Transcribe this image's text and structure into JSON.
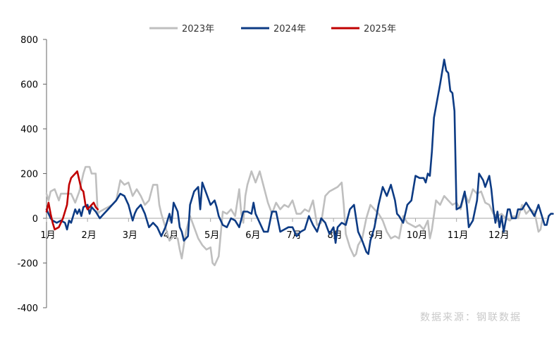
{
  "chart_data": {
    "type": "line",
    "title": "",
    "xlabel": "",
    "ylabel": "",
    "ylim": [
      -400,
      800
    ],
    "yticks": [
      -400,
      -200,
      0,
      200,
      400,
      600,
      800
    ],
    "x_range": [
      1,
      13
    ],
    "month_labels": [
      "1月",
      "2月",
      "3月",
      "4月",
      "5月",
      "6月",
      "7月",
      "8月",
      "9月",
      "10月",
      "11月",
      "12月"
    ],
    "legend_position": "top-center",
    "grid": false,
    "series": [
      {
        "name": "2023年",
        "color": "#bfbfbf",
        "points": [
          [
            1.0,
            110
          ],
          [
            1.05,
            80
          ],
          [
            1.1,
            120
          ],
          [
            1.2,
            130
          ],
          [
            1.3,
            80
          ],
          [
            1.35,
            110
          ],
          [
            1.45,
            110
          ],
          [
            1.5,
            110
          ],
          [
            1.6,
            110
          ],
          [
            1.7,
            70
          ],
          [
            1.8,
            120
          ],
          [
            1.9,
            200
          ],
          [
            1.95,
            230
          ],
          [
            2.05,
            230
          ],
          [
            2.1,
            200
          ],
          [
            2.2,
            200
          ],
          [
            2.25,
            20
          ],
          [
            2.3,
            30
          ],
          [
            2.4,
            40
          ],
          [
            2.5,
            50
          ],
          [
            2.6,
            60
          ],
          [
            2.7,
            80
          ],
          [
            2.8,
            170
          ],
          [
            2.9,
            150
          ],
          [
            3.0,
            160
          ],
          [
            3.1,
            100
          ],
          [
            3.2,
            130
          ],
          [
            3.3,
            100
          ],
          [
            3.4,
            60
          ],
          [
            3.5,
            80
          ],
          [
            3.6,
            150
          ],
          [
            3.7,
            150
          ],
          [
            3.75,
            60
          ],
          [
            3.8,
            20
          ],
          [
            3.9,
            -40
          ],
          [
            4.0,
            -100
          ],
          [
            4.1,
            -80
          ],
          [
            4.2,
            -90
          ],
          [
            4.25,
            -140
          ],
          [
            4.3,
            -180
          ],
          [
            4.4,
            -60
          ],
          [
            4.5,
            10
          ],
          [
            4.6,
            -40
          ],
          [
            4.7,
            -90
          ],
          [
            4.8,
            -120
          ],
          [
            4.9,
            -140
          ],
          [
            5.0,
            -130
          ],
          [
            5.05,
            -200
          ],
          [
            5.1,
            -210
          ],
          [
            5.2,
            -170
          ],
          [
            5.3,
            30
          ],
          [
            5.4,
            20
          ],
          [
            5.5,
            40
          ],
          [
            5.6,
            10
          ],
          [
            5.7,
            130
          ],
          [
            5.75,
            20
          ],
          [
            5.8,
            -20
          ],
          [
            5.85,
            100
          ],
          [
            5.9,
            150
          ],
          [
            6.0,
            210
          ],
          [
            6.1,
            160
          ],
          [
            6.2,
            210
          ],
          [
            6.3,
            140
          ],
          [
            6.4,
            70
          ],
          [
            6.5,
            20
          ],
          [
            6.6,
            70
          ],
          [
            6.7,
            40
          ],
          [
            6.8,
            60
          ],
          [
            6.9,
            50
          ],
          [
            7.0,
            80
          ],
          [
            7.1,
            20
          ],
          [
            7.2,
            20
          ],
          [
            7.3,
            40
          ],
          [
            7.4,
            30
          ],
          [
            7.5,
            80
          ],
          [
            7.6,
            -30
          ],
          [
            7.7,
            -20
          ],
          [
            7.8,
            100
          ],
          [
            7.9,
            120
          ],
          [
            8.0,
            130
          ],
          [
            8.1,
            140
          ],
          [
            8.2,
            160
          ],
          [
            8.25,
            60
          ],
          [
            8.3,
            -70
          ],
          [
            8.4,
            -130
          ],
          [
            8.5,
            -170
          ],
          [
            8.55,
            -160
          ],
          [
            8.6,
            -120
          ],
          [
            8.7,
            -90
          ],
          [
            8.8,
            0
          ],
          [
            8.9,
            60
          ],
          [
            9.0,
            40
          ],
          [
            9.1,
            20
          ],
          [
            9.2,
            -10
          ],
          [
            9.3,
            -60
          ],
          [
            9.4,
            -90
          ],
          [
            9.5,
            -80
          ],
          [
            9.6,
            -90
          ],
          [
            9.7,
            10
          ],
          [
            9.8,
            -20
          ],
          [
            9.9,
            -30
          ],
          [
            10.0,
            -40
          ],
          [
            10.1,
            -30
          ],
          [
            10.2,
            -50
          ],
          [
            10.3,
            -10
          ],
          [
            10.35,
            -90
          ],
          [
            10.4,
            -50
          ],
          [
            10.5,
            80
          ],
          [
            10.6,
            60
          ],
          [
            10.7,
            100
          ],
          [
            10.8,
            80
          ],
          [
            10.9,
            60
          ],
          [
            11.0,
            70
          ],
          [
            11.1,
            40
          ],
          [
            11.2,
            110
          ],
          [
            11.3,
            70
          ],
          [
            11.4,
            130
          ],
          [
            11.5,
            110
          ],
          [
            11.6,
            120
          ],
          [
            11.7,
            70
          ],
          [
            11.8,
            60
          ],
          [
            11.9,
            20
          ],
          [
            12.0,
            10
          ],
          [
            12.1,
            20
          ],
          [
            12.2,
            0
          ],
          [
            12.3,
            -10
          ],
          [
            12.4,
            10
          ],
          [
            12.5,
            0
          ],
          [
            12.6,
            60
          ],
          [
            12.7,
            20
          ],
          [
            12.8,
            40
          ],
          [
            12.9,
            30
          ],
          [
            13.0,
            -60
          ],
          [
            13.05,
            -50
          ],
          [
            13.1,
            0
          ]
        ]
      },
      {
        "name": "2024年",
        "color": "#0d3b84",
        "points": [
          [
            1.0,
            40
          ],
          [
            1.05,
            20
          ],
          [
            1.1,
            0
          ],
          [
            1.15,
            -10
          ],
          [
            1.25,
            -20
          ],
          [
            1.35,
            -10
          ],
          [
            1.45,
            -20
          ],
          [
            1.5,
            -50
          ],
          [
            1.55,
            -10
          ],
          [
            1.6,
            -20
          ],
          [
            1.7,
            40
          ],
          [
            1.75,
            20
          ],
          [
            1.8,
            40
          ],
          [
            1.85,
            10
          ],
          [
            1.9,
            50
          ],
          [
            2.0,
            60
          ],
          [
            2.05,
            20
          ],
          [
            2.1,
            50
          ],
          [
            2.2,
            30
          ],
          [
            2.3,
            0
          ],
          [
            2.4,
            20
          ],
          [
            2.5,
            40
          ],
          [
            2.6,
            60
          ],
          [
            2.7,
            80
          ],
          [
            2.8,
            110
          ],
          [
            2.9,
            100
          ],
          [
            3.0,
            60
          ],
          [
            3.1,
            -10
          ],
          [
            3.15,
            20
          ],
          [
            3.2,
            40
          ],
          [
            3.3,
            60
          ],
          [
            3.4,
            20
          ],
          [
            3.5,
            -40
          ],
          [
            3.6,
            -20
          ],
          [
            3.7,
            -40
          ],
          [
            3.8,
            -80
          ],
          [
            3.9,
            -40
          ],
          [
            4.0,
            20
          ],
          [
            4.05,
            -20
          ],
          [
            4.1,
            70
          ],
          [
            4.2,
            30
          ],
          [
            4.25,
            -40
          ],
          [
            4.3,
            -60
          ],
          [
            4.35,
            -100
          ],
          [
            4.45,
            -80
          ],
          [
            4.5,
            60
          ],
          [
            4.6,
            120
          ],
          [
            4.7,
            140
          ],
          [
            4.75,
            40
          ],
          [
            4.8,
            160
          ],
          [
            4.9,
            110
          ],
          [
            5.0,
            60
          ],
          [
            5.1,
            80
          ],
          [
            5.15,
            50
          ],
          [
            5.2,
            10
          ],
          [
            5.3,
            -30
          ],
          [
            5.4,
            -40
          ],
          [
            5.5,
            0
          ],
          [
            5.6,
            -10
          ],
          [
            5.7,
            -40
          ],
          [
            5.8,
            30
          ],
          [
            5.9,
            30
          ],
          [
            6.0,
            20
          ],
          [
            6.05,
            70
          ],
          [
            6.1,
            20
          ],
          [
            6.2,
            -20
          ],
          [
            6.3,
            -60
          ],
          [
            6.4,
            -60
          ],
          [
            6.5,
            30
          ],
          [
            6.6,
            30
          ],
          [
            6.7,
            -60
          ],
          [
            6.8,
            -50
          ],
          [
            6.9,
            -40
          ],
          [
            7.0,
            -40
          ],
          [
            7.1,
            -80
          ],
          [
            7.2,
            -60
          ],
          [
            7.3,
            -50
          ],
          [
            7.4,
            10
          ],
          [
            7.5,
            -30
          ],
          [
            7.6,
            -60
          ],
          [
            7.7,
            0
          ],
          [
            7.8,
            -20
          ],
          [
            7.9,
            -70
          ],
          [
            8.0,
            -40
          ],
          [
            8.05,
            -110
          ],
          [
            8.1,
            -40
          ],
          [
            8.2,
            -20
          ],
          [
            8.3,
            -30
          ],
          [
            8.4,
            40
          ],
          [
            8.5,
            60
          ],
          [
            8.6,
            -60
          ],
          [
            8.7,
            -100
          ],
          [
            8.8,
            -150
          ],
          [
            8.85,
            -160
          ],
          [
            8.9,
            -100
          ],
          [
            9.0,
            -40
          ],
          [
            9.1,
            60
          ],
          [
            9.2,
            140
          ],
          [
            9.3,
            100
          ],
          [
            9.4,
            150
          ],
          [
            9.5,
            80
          ],
          [
            9.55,
            20
          ],
          [
            9.6,
            10
          ],
          [
            9.7,
            -20
          ],
          [
            9.8,
            60
          ],
          [
            9.9,
            80
          ],
          [
            10.0,
            190
          ],
          [
            10.1,
            180
          ],
          [
            10.2,
            180
          ],
          [
            10.25,
            160
          ],
          [
            10.3,
            200
          ],
          [
            10.35,
            190
          ],
          [
            10.4,
            300
          ],
          [
            10.45,
            450
          ],
          [
            10.5,
            500
          ],
          [
            10.6,
            600
          ],
          [
            10.7,
            710
          ],
          [
            10.75,
            660
          ],
          [
            10.8,
            650
          ],
          [
            10.85,
            570
          ],
          [
            10.9,
            560
          ],
          [
            10.95,
            480
          ],
          [
            11.0,
            40
          ],
          [
            11.1,
            50
          ],
          [
            11.2,
            120
          ],
          [
            11.25,
            60
          ],
          [
            11.3,
            -40
          ],
          [
            11.4,
            -10
          ],
          [
            11.5,
            80
          ],
          [
            11.55,
            200
          ],
          [
            11.65,
            170
          ],
          [
            11.7,
            140
          ],
          [
            11.8,
            190
          ],
          [
            11.85,
            130
          ],
          [
            11.9,
            40
          ],
          [
            11.95,
            -20
          ],
          [
            12.0,
            30
          ],
          [
            12.05,
            -40
          ],
          [
            12.1,
            10
          ],
          [
            12.15,
            -60
          ],
          [
            12.25,
            40
          ],
          [
            12.3,
            40
          ],
          [
            12.35,
            0
          ],
          [
            12.45,
            0
          ],
          [
            12.5,
            40
          ],
          [
            12.6,
            40
          ],
          [
            12.7,
            70
          ],
          [
            12.8,
            40
          ],
          [
            12.9,
            10
          ],
          [
            13.0,
            60
          ],
          [
            13.05,
            30
          ],
          [
            13.1,
            0
          ],
          [
            13.15,
            -30
          ],
          [
            13.2,
            -30
          ],
          [
            13.25,
            10
          ],
          [
            13.3,
            20
          ],
          [
            13.35,
            20
          ]
        ]
      },
      {
        "name": "2025年",
        "color": "#c00000",
        "points": [
          [
            1.0,
            30
          ],
          [
            1.05,
            70
          ],
          [
            1.1,
            20
          ],
          [
            1.15,
            -20
          ],
          [
            1.2,
            -50
          ],
          [
            1.3,
            -40
          ],
          [
            1.4,
            0
          ],
          [
            1.5,
            60
          ],
          [
            1.55,
            150
          ],
          [
            1.6,
            180
          ],
          [
            1.7,
            200
          ],
          [
            1.75,
            210
          ],
          [
            1.8,
            170
          ],
          [
            1.85,
            130
          ],
          [
            1.9,
            120
          ],
          [
            1.95,
            60
          ],
          [
            2.0,
            40
          ],
          [
            2.05,
            50
          ],
          [
            2.1,
            60
          ],
          [
            2.15,
            70
          ],
          [
            2.2,
            50
          ],
          [
            2.25,
            40
          ]
        ]
      }
    ]
  },
  "source_text": "数据来源：钢联数据"
}
